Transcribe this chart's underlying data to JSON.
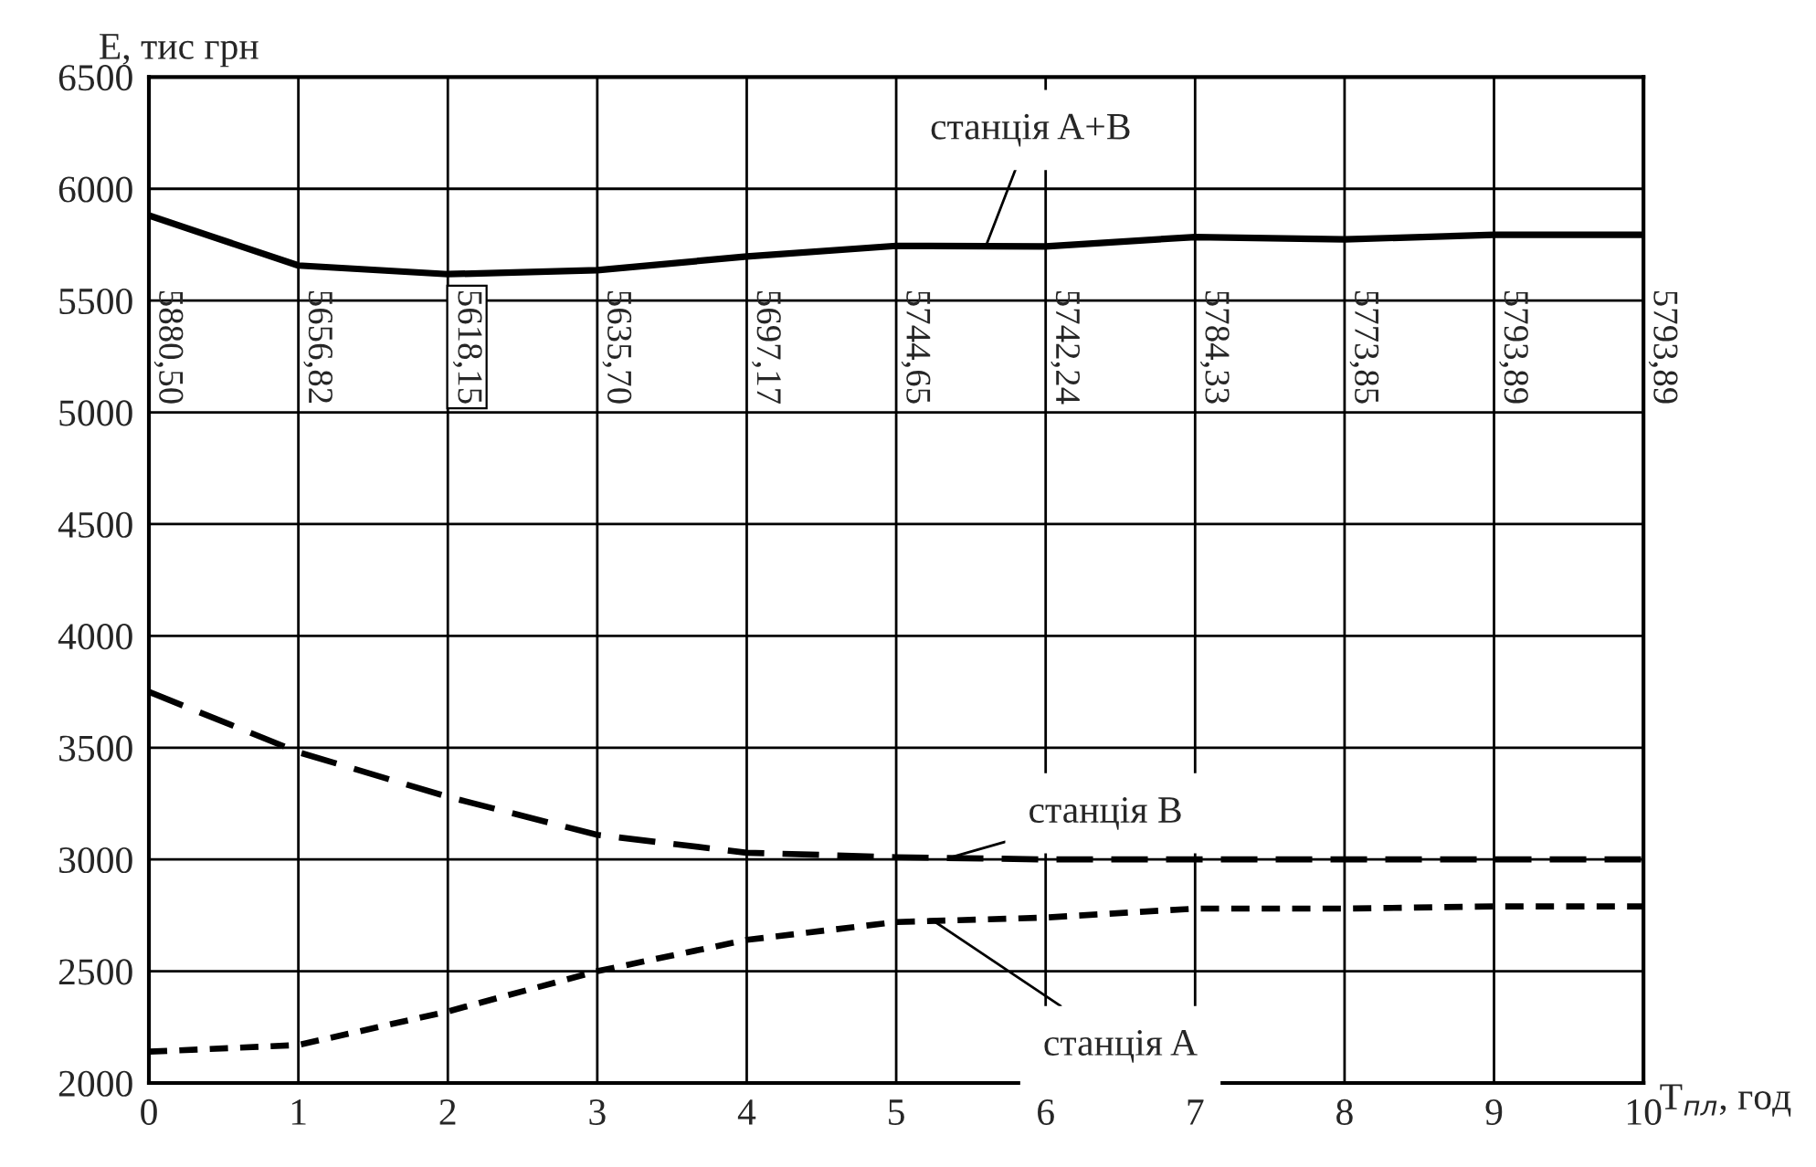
{
  "chart_data": {
    "type": "line",
    "xlabel": "T$_{пл}$, год",
    "ylabel": "E, тис грн",
    "x": [
      0,
      1,
      2,
      3,
      4,
      5,
      6,
      7,
      8,
      9,
      10
    ],
    "series": [
      {
        "name": "станція A+B",
        "color": "#000000",
        "line_style": "solid",
        "values": [
          5880.5,
          5656.82,
          5618.15,
          5635.7,
          5697.17,
          5744.65,
          5742.24,
          5784.33,
          5773.85,
          5793.89,
          5793.89
        ],
        "value_labels": [
          "5880,50",
          "5656,82",
          "5618,15",
          "5635,70",
          "5697,17",
          "5744,65",
          "5742,24",
          "5784,33",
          "5773,85",
          "5793,89",
          "5793,89"
        ]
      },
      {
        "name": "станція B",
        "color": "#000000",
        "line_style": "dashed",
        "values": [
          3750,
          3480,
          3280,
          3110,
          3030,
          3010,
          3000,
          3000,
          3000,
          3000,
          3000
        ]
      },
      {
        "name": "станція A",
        "color": "#000000",
        "line_style": "dotted",
        "values": [
          2140,
          2170,
          2320,
          2500,
          2640,
          2720,
          2740,
          2780,
          2780,
          2790,
          2790
        ]
      }
    ],
    "xlim": [
      0,
      10
    ],
    "xticks": [
      0,
      1,
      2,
      3,
      4,
      5,
      6,
      7,
      8,
      9,
      10
    ],
    "ylim": [
      2000,
      6500
    ],
    "yticks": [
      2000,
      2500,
      3000,
      3500,
      4000,
      4500,
      5000,
      5500,
      6000,
      6500
    ],
    "grid": true,
    "legend": false,
    "marker": "none"
  }
}
